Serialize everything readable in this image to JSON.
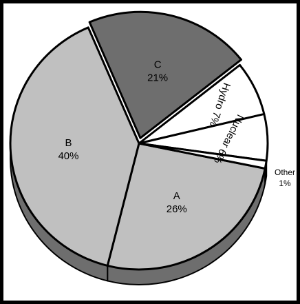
{
  "chart_data": {
    "type": "pie",
    "title": "",
    "style": "3d-tilted, slice C exploded",
    "legend": "none",
    "slices": [
      {
        "label": "A",
        "value": 26,
        "value_text": "26%",
        "color": "#c0c0c0"
      },
      {
        "label": "B",
        "value": 40,
        "value_text": "40%",
        "color": "#c0c0c0"
      },
      {
        "label": "C",
        "value": 21,
        "value_text": "21%",
        "color": "#6e6e6e"
      },
      {
        "label": "Hydro",
        "value": 7,
        "value_text": "7%",
        "color": "#ffffff"
      },
      {
        "label": "Nuclear",
        "value": 6,
        "value_text": "6%",
        "color": "#ffffff"
      },
      {
        "label": "Other",
        "value": 1,
        "value_text": "1%",
        "color": "#ffffff"
      }
    ],
    "side_color": "#6e6e6e",
    "outline_color": "#000000"
  }
}
